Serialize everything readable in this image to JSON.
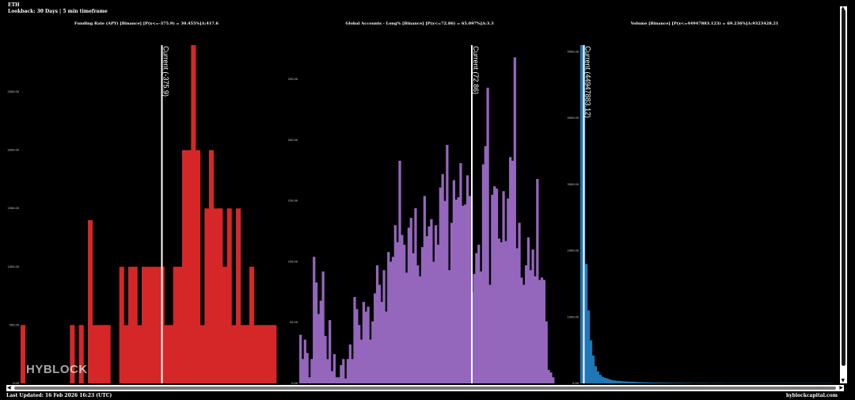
{
  "header": {
    "asset": "ETH",
    "lookback": "Lookback: 30 Days | 5 min timeframe"
  },
  "footer": {
    "last_updated": "Last Updated: 16 Feb 2026 16:23 (UTC)",
    "site": "hyblockcapital.com"
  },
  "watermark": "HYBLOCK",
  "colors": {
    "background": "#000000",
    "funding": "#d62728",
    "accounts": "#9467bd",
    "volume": "#1f77b4",
    "current_line": "#ffffff"
  },
  "chart_data": [
    {
      "type": "bar",
      "title": "Funding Rate (APY) [Binance] [P(x<=-375.9) = 30.455%]Δ:417.6",
      "color": "#d62728",
      "ylim": [
        0,
        2900
      ],
      "yticks": [
        0,
        500,
        1000,
        1500,
        2000,
        2500
      ],
      "ytick_labels": [
        "0.00",
        "500.00",
        "1000.00",
        "1500.00",
        "2000.00",
        "2500.00"
      ],
      "current": {
        "label": "Current (-375.9)",
        "bin_index": 31
      },
      "values": [
        500,
        0,
        0,
        0,
        0,
        0,
        0,
        0,
        0,
        0,
        0,
        500,
        0,
        500,
        0,
        1400,
        500,
        500,
        500,
        500,
        0,
        0,
        1000,
        500,
        1000,
        1000,
        500,
        1000,
        1000,
        1000,
        1000,
        1000,
        500,
        500,
        1000,
        1000,
        2000,
        2000,
        2900,
        2000,
        500,
        1500,
        2000,
        1500,
        1500,
        1000,
        1500,
        500,
        1500,
        500,
        500,
        1000,
        500,
        500,
        500,
        500,
        500
      ],
      "x_start": 0,
      "x_step": 1
    },
    {
      "type": "bar",
      "title": "Global Accounts - Long% [Binance] [P(x<=72.86) = 65.097%]Δ:3.3",
      "color": "#9467bd",
      "ylim": [
        0,
        278
      ],
      "yticks": [
        0,
        50,
        100,
        150,
        200,
        250
      ],
      "ytick_labels": [
        "0.00",
        "50.00",
        "100.00",
        "150.00",
        "200.00",
        "250.00"
      ],
      "current": {
        "label": "Current (72.86)",
        "bin_index": 76
      },
      "values": [
        40,
        20,
        36,
        25,
        5,
        20,
        104,
        83,
        57,
        68,
        92,
        39,
        20,
        52,
        10,
        24,
        5,
        5,
        15,
        20,
        4,
        20,
        32,
        20,
        71,
        61,
        48,
        36,
        67,
        59,
        63,
        36,
        51,
        74,
        97,
        81,
        67,
        93,
        59,
        108,
        100,
        104,
        130,
        116,
        183,
        122,
        114,
        91,
        128,
        136,
        107,
        144,
        97,
        88,
        112,
        154,
        121,
        129,
        135,
        100,
        130,
        114,
        161,
        172,
        150,
        196,
        93,
        132,
        167,
        151,
        153,
        181,
        146,
        147,
        171,
        154,
        75,
        90,
        107,
        114,
        92,
        180,
        195,
        243,
        81,
        155,
        162,
        160,
        119,
        116,
        158,
        117,
        152,
        186,
        183,
        268,
        111,
        132,
        87,
        81,
        97,
        120,
        93,
        110,
        88,
        168,
        85,
        87,
        85,
        51,
        11,
        9,
        5
      ],
      "x_start": 0,
      "x_step": 1
    },
    {
      "type": "bar",
      "title": "Volume [Binance] [P(x<=44947883.123) = 69.236%]Δ:9323428.21",
      "color": "#1f77b4",
      "ylim": [
        0,
        5100
      ],
      "yticks": [
        0,
        1000,
        2000,
        3000,
        4000,
        5000
      ],
      "ytick_labels": [
        "0.00",
        "1000.00",
        "2000.00",
        "3000.00",
        "4000.00",
        "5000.00"
      ],
      "current": {
        "label": "Current (44947883.12)",
        "bin_index": 1
      },
      "values": [
        5100,
        5100,
        1800,
        1100,
        650,
        420,
        260,
        180,
        130,
        100,
        85,
        75,
        60,
        50,
        45,
        40,
        38,
        35,
        30,
        30,
        28,
        26,
        25,
        22,
        20,
        18,
        18,
        16,
        15,
        14,
        13,
        12,
        12,
        11,
        10,
        10,
        10,
        9,
        9,
        8,
        8,
        8,
        7,
        7,
        7,
        6,
        6,
        6,
        5,
        5,
        5,
        5,
        5,
        5,
        4,
        4,
        4,
        4,
        4,
        4,
        4,
        3,
        3,
        3,
        3,
        3,
        3,
        3,
        3,
        3,
        3,
        3,
        3,
        3,
        3,
        3,
        3,
        3,
        3,
        3,
        3,
        3,
        3,
        3,
        3,
        3,
        3,
        3,
        3,
        3,
        3,
        3,
        3,
        3,
        3,
        3,
        3,
        3,
        3,
        3,
        3,
        3,
        3,
        3,
        3,
        3,
        3,
        3
      ],
      "x_start": 0,
      "x_step": 1
    }
  ],
  "scrollbar": {
    "up": "▲",
    "down": "▼",
    "left": "◀",
    "right": "▶"
  }
}
